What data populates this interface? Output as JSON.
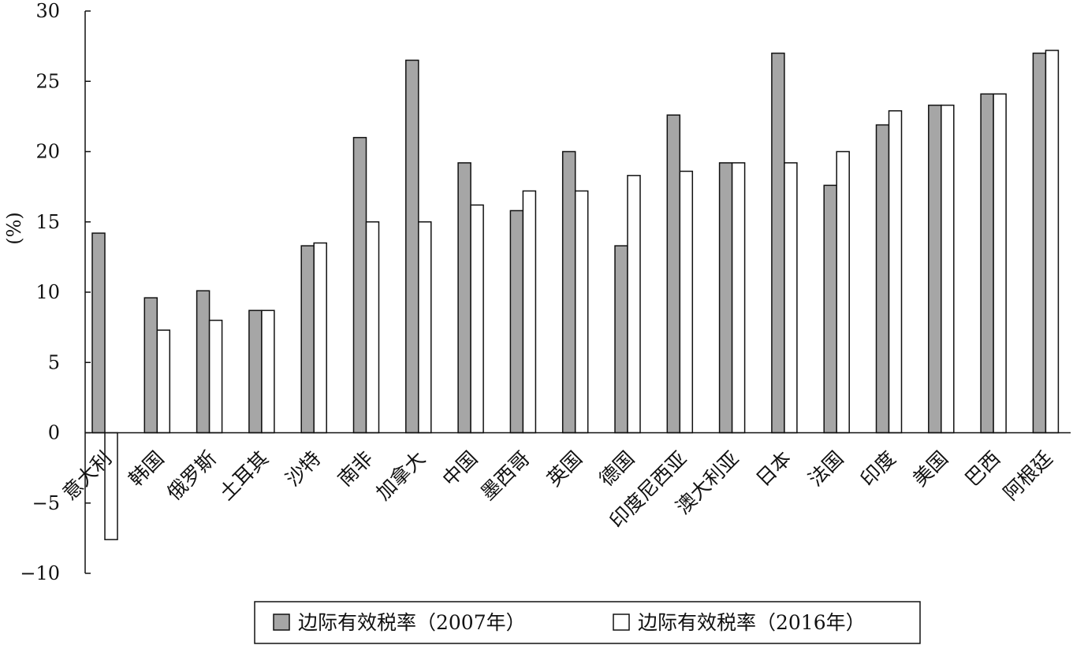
{
  "chart_data": {
    "type": "bar",
    "ylabel": "(%)",
    "ylim": [
      -10,
      30
    ],
    "yticks": [
      "30",
      "25",
      "20",
      "15",
      "10",
      "5",
      "0",
      "−5",
      "−10"
    ],
    "ytick_values": [
      30,
      25,
      20,
      15,
      10,
      5,
      0,
      -5,
      -10
    ],
    "categories": [
      "意大利",
      "韩国",
      "俄罗斯",
      "土耳其",
      "沙特",
      "南非",
      "加拿大",
      "中国",
      "墨西哥",
      "英国",
      "德国",
      "印度尼西亚",
      "澳大利亚",
      "日本",
      "法国",
      "印度",
      "美国",
      "巴西",
      "阿根廷"
    ],
    "series": [
      {
        "name": "边际有效税率（2007年）",
        "color": "#a6a6a6",
        "values": [
          14.2,
          9.6,
          10.1,
          8.7,
          13.3,
          21.0,
          26.5,
          19.2,
          15.8,
          20.0,
          13.3,
          22.6,
          19.2,
          27.0,
          17.6,
          21.9,
          23.3,
          24.1,
          27.0
        ]
      },
      {
        "name": "边际有效税率（2016年）",
        "color": "#ffffff",
        "values": [
          -7.6,
          7.3,
          8.0,
          8.7,
          13.5,
          15.0,
          15.0,
          16.2,
          17.2,
          17.2,
          18.3,
          18.6,
          19.2,
          19.2,
          20.0,
          22.9,
          23.3,
          24.1,
          27.2
        ]
      }
    ],
    "legend": {
      "position": "bottom-center",
      "entries": [
        "边际有效税率（2007年）",
        "边际有效税率（2016年）"
      ]
    },
    "grid": false
  }
}
